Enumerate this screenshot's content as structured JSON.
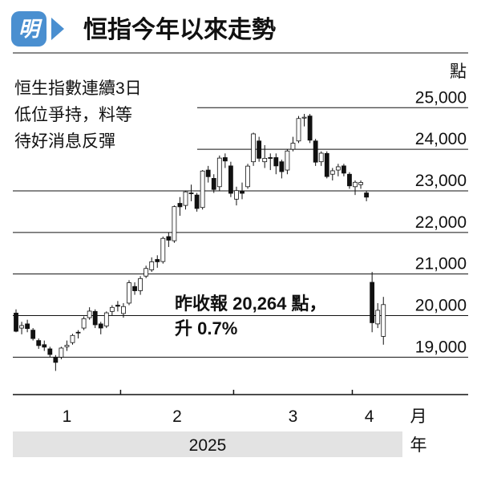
{
  "header": {
    "logo": "明",
    "title": "恒指今年以來走勢"
  },
  "annotation": [
    "恒生指數連續3日",
    "低位爭持，料等",
    "待好消息反彈"
  ],
  "callout": [
    "昨收報 20,264 點，",
    "升 0.7%"
  ],
  "chart_data": {
    "type": "candlestick",
    "y_unit": "點",
    "x_unit": "月",
    "year": "2025",
    "year_unit": "年",
    "up_color": "#ffffff",
    "down_color": "#111111",
    "grid": true,
    "ylim": [
      18100,
      25700
    ],
    "yticks": [
      {
        "value": 19000,
        "label": "19,000"
      },
      {
        "value": 20000,
        "label": "20,000"
      },
      {
        "value": 21000,
        "label": "21,000"
      },
      {
        "value": 22000,
        "label": "22,000"
      },
      {
        "value": 23000,
        "label": "23,000"
      },
      {
        "value": 24000,
        "label": "24,000"
      },
      {
        "value": 25000,
        "label": "25,000"
      }
    ],
    "months": [
      {
        "label": "1",
        "open": [
          20060,
          19700,
          19800,
          19650,
          19400,
          19300,
          19200,
          19000,
          19000,
          19250,
          19350,
          19600,
          19700,
          19950,
          20100,
          19800,
          19750,
          20100,
          20250
        ],
        "high": [
          20150,
          19850,
          19900,
          19700,
          19450,
          19400,
          19250,
          19050,
          19250,
          19400,
          19560,
          19650,
          19980,
          20200,
          20150,
          19850,
          20100,
          20250,
          20350
        ],
        "low": [
          19600,
          19550,
          19600,
          19400,
          19200,
          19150,
          19000,
          18670,
          18950,
          19150,
          19300,
          19450,
          19650,
          19900,
          19700,
          19550,
          19700,
          20000,
          20100
        ],
        "close": [
          19623,
          19760,
          19688,
          19448,
          19279,
          19241,
          19064,
          18874,
          19219,
          19286,
          19522,
          19584,
          19926,
          20107,
          19779,
          19701,
          20066,
          20197,
          20225
        ]
      },
      {
        "label": "2",
        "open": [
          20050,
          20300,
          20700,
          20600,
          20950,
          21100,
          21350,
          21300,
          21900,
          21800,
          22700,
          22650,
          22950,
          22900,
          22600,
          23500,
          23300,
          23100,
          23800,
          23600
        ],
        "high": [
          20300,
          20850,
          20800,
          20950,
          21200,
          21400,
          21450,
          21900,
          22000,
          22650,
          22850,
          23000,
          23150,
          22950,
          23500,
          23600,
          23400,
          23850,
          23900,
          23700
        ],
        "low": [
          19950,
          20250,
          20500,
          20500,
          20900,
          21050,
          21150,
          21250,
          21650,
          21750,
          22400,
          22550,
          22750,
          22500,
          22550,
          23200,
          22950,
          23000,
          23550,
          22850
        ],
        "close": [
          20217,
          20790,
          20597,
          20891,
          21133,
          21294,
          21294,
          21857,
          21814,
          22620,
          22616,
          22976,
          22944,
          22576,
          23477,
          23341,
          23034,
          23788,
          23718,
          22941
        ]
      },
      {
        "label": "3",
        "open": [
          22800,
          23000,
          23100,
          23700,
          24200,
          23700,
          23800,
          23800,
          23700,
          23500,
          24000,
          24200,
          24750,
          24800,
          24200,
          23700,
          23900,
          23400,
          23500,
          23600,
          23400
        ],
        "high": [
          23100,
          23200,
          23650,
          24400,
          24300,
          24100,
          23900,
          23900,
          23750,
          24000,
          24300,
          24800,
          24850,
          24850,
          24250,
          23950,
          23950,
          23550,
          23650,
          23650,
          23450
        ],
        "low": [
          22650,
          22800,
          23050,
          23600,
          23700,
          23550,
          23500,
          23400,
          23300,
          23400,
          23950,
          24150,
          24550,
          24150,
          23600,
          23600,
          23300,
          23250,
          23350,
          23350,
          23050
        ],
        "close": [
          23006,
          22941,
          23595,
          24370,
          23783,
          23783,
          23782,
          23600,
          23462,
          23959,
          24146,
          24740,
          24771,
          24219,
          23690,
          23906,
          23344,
          23483,
          23579,
          23426,
          23120
        ]
      },
      {
        "label": "4",
        "open": [
          23100,
          23150,
          22950,
          20800,
          19800,
          19500
        ],
        "high": [
          23250,
          23250,
          23000,
          21050,
          20300,
          20450
        ],
        "low": [
          22900,
          23050,
          22750,
          19600,
          19700,
          19300
        ],
        "close": [
          23206,
          23202,
          22849,
          19828,
          20127,
          20264
        ]
      }
    ]
  }
}
